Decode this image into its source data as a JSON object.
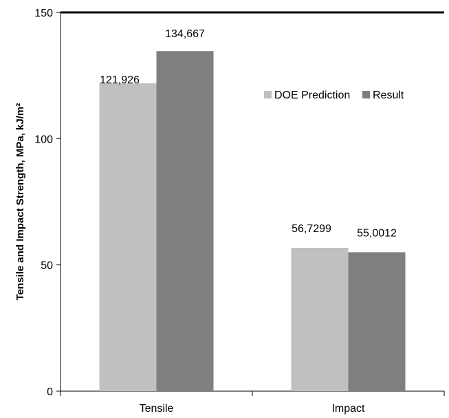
{
  "chart_data": {
    "type": "bar",
    "title": "",
    "xlabel": "",
    "ylabel": "Tensile and Impact Strength, MPa, kJ/m²",
    "categories": [
      "Tensile",
      "Impact"
    ],
    "series": [
      {
        "name": "DOE Prediction",
        "values": [
          121.926,
          56.7299
        ],
        "labels": [
          "121,926",
          "56,7299"
        ],
        "color": "#c0c0c0"
      },
      {
        "name": "Result",
        "values": [
          134.667,
          55.0012
        ],
        "labels": [
          "134,667",
          "55,0012"
        ],
        "color": "#7f7f7f"
      }
    ],
    "ylim": [
      0,
      150
    ],
    "yticks": [
      0,
      50,
      100,
      150
    ],
    "grid": false,
    "legend_position": "inside-right"
  }
}
